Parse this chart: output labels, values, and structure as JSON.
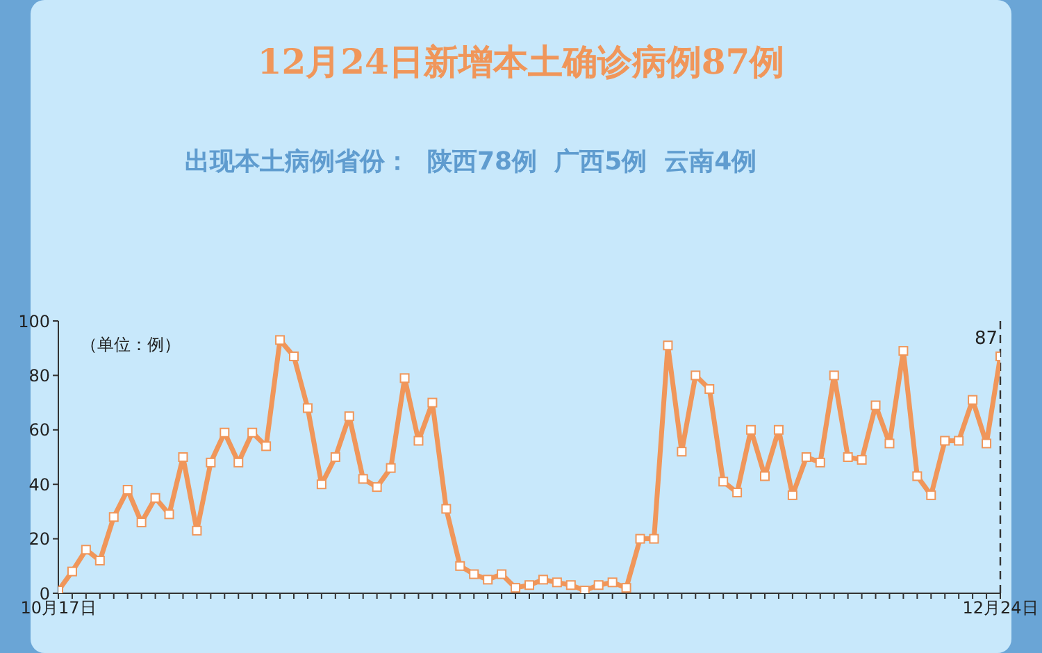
{
  "chart_data": {
    "type": "line",
    "title": "12月24日新增本土确诊病例87例",
    "subtitle": "出现本土病例省份：  陕西78例  广西5例  云南4例",
    "annotations": [
      "（单位：例）"
    ],
    "categories": [
      "10月17日",
      null,
      null,
      null,
      null,
      null,
      null,
      null,
      null,
      null,
      null,
      null,
      null,
      null,
      null,
      null,
      null,
      null,
      null,
      null,
      null,
      null,
      null,
      null,
      null,
      null,
      null,
      null,
      null,
      null,
      null,
      null,
      null,
      null,
      null,
      null,
      null,
      null,
      null,
      null,
      null,
      null,
      null,
      null,
      null,
      null,
      null,
      null,
      null,
      null,
      null,
      null,
      null,
      null,
      null,
      null,
      null,
      null,
      null,
      null,
      null,
      null,
      null,
      null,
      null,
      null,
      null,
      null,
      "12月24日"
    ],
    "series": [
      {
        "color": "#f0965a",
        "values": [
          1,
          8,
          16,
          12,
          28,
          38,
          26,
          35,
          29,
          50,
          23,
          48,
          59,
          48,
          59,
          54,
          93,
          87,
          68,
          40,
          50,
          65,
          42,
          39,
          46,
          79,
          56,
          70,
          31,
          10,
          7,
          5,
          7,
          2,
          3,
          5,
          4,
          3,
          1,
          3,
          4,
          2,
          20,
          20,
          91,
          52,
          80,
          75,
          41,
          37,
          60,
          43,
          60,
          36,
          50,
          48,
          80,
          50,
          49,
          69,
          55,
          89,
          43,
          36,
          56,
          56,
          71,
          55,
          87
        ],
        "value_labels": [
          null,
          null,
          null,
          null,
          null,
          null,
          null,
          null,
          null,
          null,
          null,
          null,
          null,
          null,
          null,
          null,
          null,
          null,
          null,
          null,
          null,
          null,
          null,
          null,
          null,
          null,
          null,
          null,
          null,
          null,
          null,
          null,
          null,
          null,
          null,
          null,
          null,
          null,
          null,
          null,
          null,
          null,
          null,
          null,
          null,
          null,
          null,
          null,
          null,
          null,
          null,
          null,
          null,
          null,
          null,
          null,
          null,
          null,
          null,
          null,
          null,
          null,
          null,
          null,
          null,
          null,
          null,
          null,
          "87"
        ]
      }
    ],
    "ylim": [
      0,
      100
    ],
    "yticks": [
      0,
      20,
      40,
      60,
      80,
      100
    ],
    "grid": false,
    "marker": "square",
    "line_style": "solid",
    "ref_lines": [
      {
        "axis": "x",
        "value": "12月24日",
        "line_style": "dashed",
        "color": "#333333"
      }
    ]
  }
}
